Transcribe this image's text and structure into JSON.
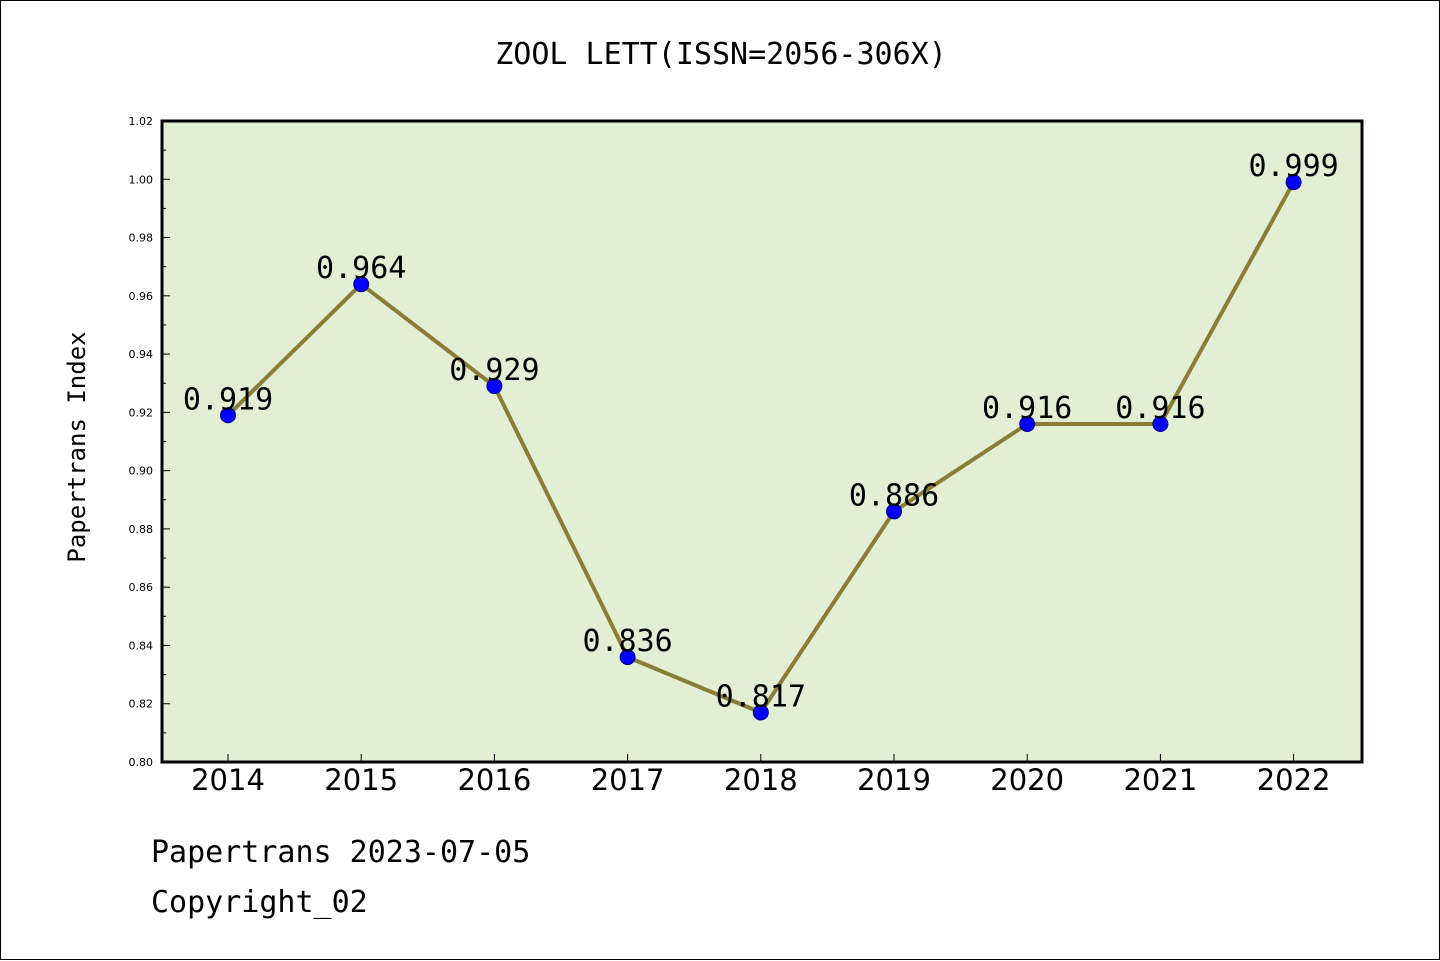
{
  "chart_data": {
    "type": "line",
    "title": "ZOOL LETT(ISSN=2056-306X)",
    "xlabel": "",
    "ylabel": "Papertrans Index",
    "categories": [
      "2014",
      "2015",
      "2016",
      "2017",
      "2018",
      "2019",
      "2020",
      "2021",
      "2022"
    ],
    "series": [
      {
        "values": [
          0.919,
          0.964,
          0.929,
          0.836,
          0.817,
          0.886,
          0.916,
          0.916,
          0.999
        ]
      }
    ],
    "data_labels": [
      "0.919",
      "0.964",
      "0.929",
      "0.836",
      "0.817",
      "0.886",
      "0.916",
      "0.916",
      "0.999"
    ],
    "ylim": [
      0.8,
      1.02
    ],
    "yticks": [
      "0.80",
      "0.82",
      "0.84",
      "0.86",
      "0.88",
      "0.90",
      "0.92",
      "0.94",
      "0.96",
      "0.98",
      "1.00",
      "1.02"
    ],
    "grid": false,
    "legend": "none",
    "colors": {
      "line": "#8b7d35",
      "marker": "#0000ff",
      "marker_edge": "#000080",
      "plot_background": "#e2efd5",
      "axes": "#000000"
    }
  },
  "footer": {
    "date_text": "Papertrans 2023-07-05",
    "copyright_text": "Copyright_02"
  }
}
